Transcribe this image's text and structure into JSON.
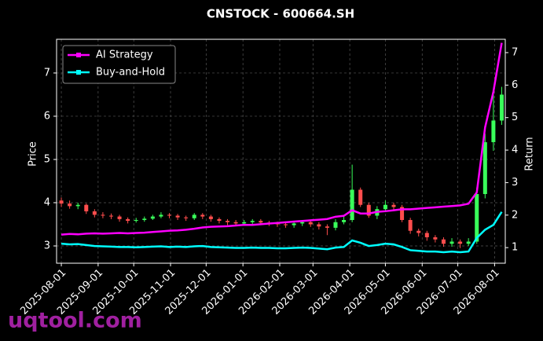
{
  "chart_data": {
    "type": "candlestick",
    "title": "CNSTOCK - 600664.SH",
    "ylabel": "Price",
    "y2label": "Return",
    "watermark": "uqtool.com",
    "x": [
      "2025-08-01",
      "2025-08-08",
      "2025-08-15",
      "2025-08-22",
      "2025-08-29",
      "2025-09-05",
      "2025-09-12",
      "2025-09-19",
      "2025-09-26",
      "2025-10-03",
      "2025-10-10",
      "2025-10-17",
      "2025-10-24",
      "2025-10-31",
      "2025-11-07",
      "2025-11-14",
      "2025-11-21",
      "2025-11-28",
      "2025-12-05",
      "2025-12-12",
      "2025-12-19",
      "2025-12-26",
      "2026-01-02",
      "2026-01-09",
      "2026-01-16",
      "2026-01-23",
      "2026-01-30",
      "2026-02-06",
      "2026-02-13",
      "2026-02-20",
      "2026-02-27",
      "2026-03-06",
      "2026-03-13",
      "2026-03-20",
      "2026-03-27",
      "2026-04-03",
      "2026-04-10",
      "2026-04-17",
      "2026-04-24",
      "2026-05-01",
      "2026-05-08",
      "2026-05-15",
      "2026-05-22",
      "2026-05-29",
      "2026-06-05",
      "2026-06-12",
      "2026-06-19",
      "2026-06-26",
      "2026-07-03",
      "2026-07-10",
      "2026-07-17",
      "2026-07-24",
      "2026-07-31",
      "2026-08-07"
    ],
    "open": [
      4.05,
      3.98,
      3.92,
      3.95,
      3.8,
      3.72,
      3.7,
      3.68,
      3.62,
      3.58,
      3.6,
      3.63,
      3.68,
      3.72,
      3.7,
      3.66,
      3.64,
      3.72,
      3.68,
      3.62,
      3.58,
      3.55,
      3.52,
      3.55,
      3.58,
      3.54,
      3.52,
      3.5,
      3.48,
      3.52,
      3.55,
      3.5,
      3.45,
      3.42,
      3.55,
      3.6,
      4.3,
      3.95,
      3.7,
      3.85,
      3.95,
      3.9,
      3.6,
      3.35,
      3.3,
      3.2,
      3.15,
      3.05,
      3.1,
      3.05,
      3.1,
      4.2,
      5.4,
      5.9
    ],
    "high": [
      4.12,
      4.05,
      4.0,
      3.98,
      3.85,
      3.78,
      3.75,
      3.72,
      3.66,
      3.65,
      3.68,
      3.72,
      3.78,
      3.76,
      3.74,
      3.7,
      3.76,
      3.76,
      3.72,
      3.66,
      3.62,
      3.6,
      3.6,
      3.62,
      3.62,
      3.58,
      3.56,
      3.54,
      3.56,
      3.6,
      3.6,
      3.55,
      3.5,
      3.62,
      3.68,
      4.88,
      4.35,
      4.0,
      3.92,
      4.05,
      4.0,
      3.95,
      3.65,
      3.4,
      3.35,
      3.25,
      3.2,
      3.18,
      3.15,
      3.18,
      4.35,
      5.6,
      6.5,
      6.68
    ],
    "low": [
      3.9,
      3.86,
      3.85,
      3.74,
      3.66,
      3.64,
      3.62,
      3.56,
      3.52,
      3.54,
      3.56,
      3.6,
      3.64,
      3.64,
      3.6,
      3.58,
      3.6,
      3.62,
      3.56,
      3.52,
      3.48,
      3.46,
      3.48,
      3.5,
      3.48,
      3.46,
      3.44,
      3.42,
      3.42,
      3.46,
      3.44,
      3.38,
      3.25,
      3.36,
      3.5,
      3.55,
      3.9,
      3.65,
      3.62,
      3.78,
      3.84,
      3.55,
      3.28,
      3.22,
      3.12,
      3.08,
      2.98,
      2.98,
      2.95,
      3.0,
      3.05,
      4.1,
      5.2,
      5.8
    ],
    "close": [
      3.98,
      3.92,
      3.95,
      3.8,
      3.72,
      3.7,
      3.68,
      3.62,
      3.58,
      3.6,
      3.63,
      3.68,
      3.72,
      3.7,
      3.66,
      3.64,
      3.72,
      3.68,
      3.62,
      3.58,
      3.55,
      3.52,
      3.55,
      3.58,
      3.54,
      3.52,
      3.5,
      3.48,
      3.52,
      3.55,
      3.5,
      3.45,
      3.42,
      3.55,
      3.6,
      4.3,
      3.95,
      3.7,
      3.85,
      3.95,
      3.9,
      3.6,
      3.35,
      3.3,
      3.2,
      3.15,
      3.05,
      3.1,
      3.05,
      3.1,
      4.2,
      5.4,
      5.9,
      6.5
    ],
    "up_color": "#39ff5a",
    "down_color": "#ff4d4d",
    "series": [
      {
        "name": "AI Strategy",
        "color": "#ff00ff",
        "axis": "y2",
        "values": [
          1.4,
          1.42,
          1.41,
          1.43,
          1.44,
          1.43,
          1.44,
          1.45,
          1.44,
          1.45,
          1.46,
          1.48,
          1.5,
          1.52,
          1.53,
          1.55,
          1.58,
          1.62,
          1.64,
          1.65,
          1.66,
          1.68,
          1.7,
          1.7,
          1.72,
          1.74,
          1.76,
          1.78,
          1.8,
          1.82,
          1.84,
          1.86,
          1.88,
          1.95,
          1.98,
          2.15,
          2.05,
          2.05,
          2.1,
          2.12,
          2.15,
          2.18,
          2.18,
          2.2,
          2.22,
          2.24,
          2.26,
          2.28,
          2.3,
          2.35,
          2.7,
          4.7,
          5.8,
          7.3
        ]
      },
      {
        "name": "Buy-and-Hold",
        "color": "#00ffff",
        "axis": "y2",
        "values": [
          1.12,
          1.1,
          1.11,
          1.08,
          1.05,
          1.04,
          1.03,
          1.02,
          1.02,
          1.01,
          1.02,
          1.03,
          1.04,
          1.02,
          1.03,
          1.02,
          1.04,
          1.05,
          1.02,
          1.01,
          1.0,
          0.99,
          0.99,
          1.0,
          0.99,
          0.99,
          0.98,
          0.98,
          0.99,
          1.0,
          0.99,
          0.97,
          0.95,
          1.0,
          1.02,
          1.22,
          1.15,
          1.05,
          1.08,
          1.12,
          1.1,
          1.02,
          0.92,
          0.9,
          0.88,
          0.88,
          0.86,
          0.88,
          0.86,
          0.88,
          1.3,
          1.55,
          1.7,
          2.1
        ]
      }
    ],
    "xlim": [
      "2025-07-28",
      "2026-08-10"
    ],
    "xticks": [
      "2025-08-01",
      "2025-09-01",
      "2025-10-01",
      "2025-11-01",
      "2025-12-01",
      "2026-01-01",
      "2026-02-01",
      "2026-03-01",
      "2026-04-01",
      "2026-05-01",
      "2026-06-01",
      "2026-07-01",
      "2026-08-01"
    ],
    "ylim": [
      2.6,
      7.78
    ],
    "yticks": [
      3,
      4,
      5,
      6,
      7
    ],
    "y2lim": [
      0.52,
      7.41
    ],
    "y2ticks": [
      1,
      2,
      3,
      4,
      5,
      6,
      7
    ],
    "grid": true,
    "legend": "upper left"
  }
}
